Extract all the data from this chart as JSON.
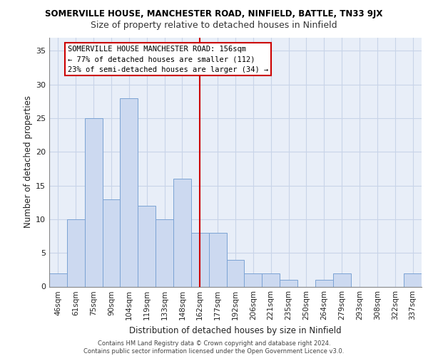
{
  "title_main": "SOMERVILLE HOUSE, MANCHESTER ROAD, NINFIELD, BATTLE, TN33 9JX",
  "title_sub": "Size of property relative to detached houses in Ninfield",
  "xlabel": "Distribution of detached houses by size in Ninfield",
  "ylabel": "Number of detached properties",
  "bar_labels": [
    "46sqm",
    "61sqm",
    "75sqm",
    "90sqm",
    "104sqm",
    "119sqm",
    "133sqm",
    "148sqm",
    "162sqm",
    "177sqm",
    "192sqm",
    "206sqm",
    "221sqm",
    "235sqm",
    "250sqm",
    "264sqm",
    "279sqm",
    "293sqm",
    "308sqm",
    "322sqm",
    "337sqm"
  ],
  "bar_values": [
    2,
    10,
    25,
    13,
    28,
    12,
    10,
    16,
    8,
    8,
    4,
    2,
    2,
    1,
    0,
    1,
    2,
    0,
    0,
    0,
    2
  ],
  "bar_color": "#ccd9f0",
  "bar_edge_color": "#7ba3d4",
  "reference_line_x": 8,
  "reference_line_color": "#cc0000",
  "annotation_line1": "SOMERVILLE HOUSE MANCHESTER ROAD: 156sqm",
  "annotation_line2": "← 77% of detached houses are smaller (112)",
  "annotation_line3": "23% of semi-detached houses are larger (34) →",
  "ylim": [
    0,
    37
  ],
  "yticks": [
    0,
    5,
    10,
    15,
    20,
    25,
    30,
    35
  ],
  "grid_color": "#c8d4e8",
  "bg_color": "#e8eef8",
  "footer_text": "Contains HM Land Registry data © Crown copyright and database right 2024.\nContains public sector information licensed under the Open Government Licence v3.0.",
  "fig_width": 6.0,
  "fig_height": 5.0,
  "title_main_fontsize": 8.5,
  "title_sub_fontsize": 9.0,
  "axis_label_fontsize": 8.5,
  "tick_fontsize": 7.5,
  "annot_fontsize": 7.5,
  "footer_fontsize": 6.0
}
